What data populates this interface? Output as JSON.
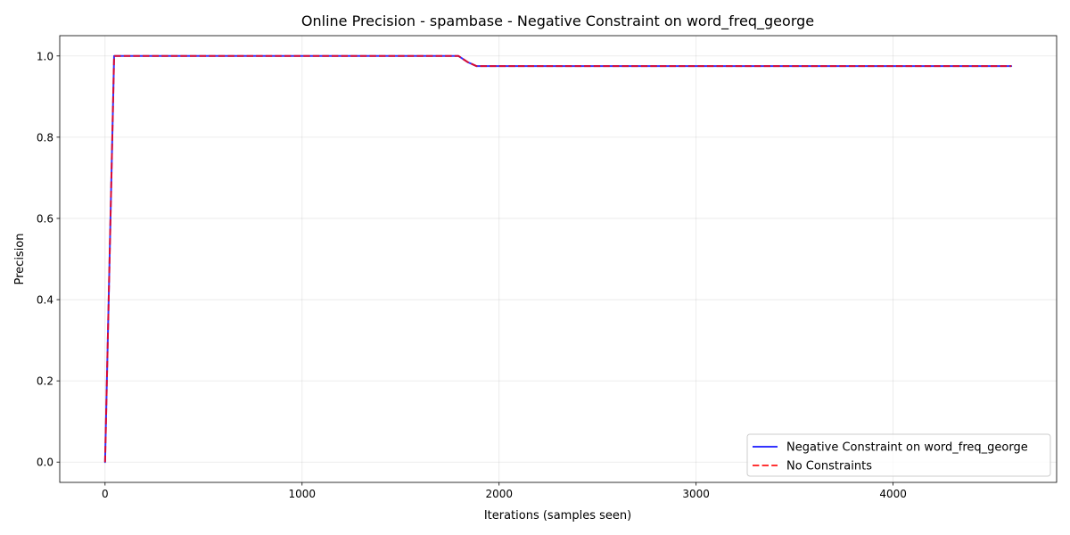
{
  "chart_data": {
    "type": "line",
    "title": "Online Precision - spambase - Negative Constraint on word_freq_george",
    "xlabel": "Iterations (samples seen)",
    "ylabel": "Precision",
    "xlim": [
      -230,
      4830
    ],
    "ylim": [
      -0.05,
      1.05
    ],
    "xticks": [
      0,
      1000,
      2000,
      3000,
      4000
    ],
    "yticks": [
      0.0,
      0.2,
      0.4,
      0.6,
      0.8,
      1.0
    ],
    "xtick_labels": [
      "0",
      "1000",
      "2000",
      "3000",
      "4000"
    ],
    "ytick_labels": [
      "0.0",
      "0.2",
      "0.4",
      "0.6",
      "0.8",
      "1.0"
    ],
    "grid": true,
    "legend_position": "lower-right",
    "series": [
      {
        "name": "Negative Constraint on word_freq_george",
        "color": "#0000ff",
        "style": "solid",
        "x": [
          0,
          46,
          92,
          1794,
          1840,
          1886,
          4600
        ],
        "y": [
          0.0,
          1.0,
          1.0,
          1.0,
          0.985,
          0.975,
          0.975
        ]
      },
      {
        "name": "No Constraints",
        "color": "#ff0000",
        "style": "dashed",
        "x": [
          0,
          46,
          92,
          1794,
          1840,
          1886,
          4600
        ],
        "y": [
          0.0,
          1.0,
          1.0,
          1.0,
          0.985,
          0.975,
          0.975
        ]
      }
    ]
  }
}
